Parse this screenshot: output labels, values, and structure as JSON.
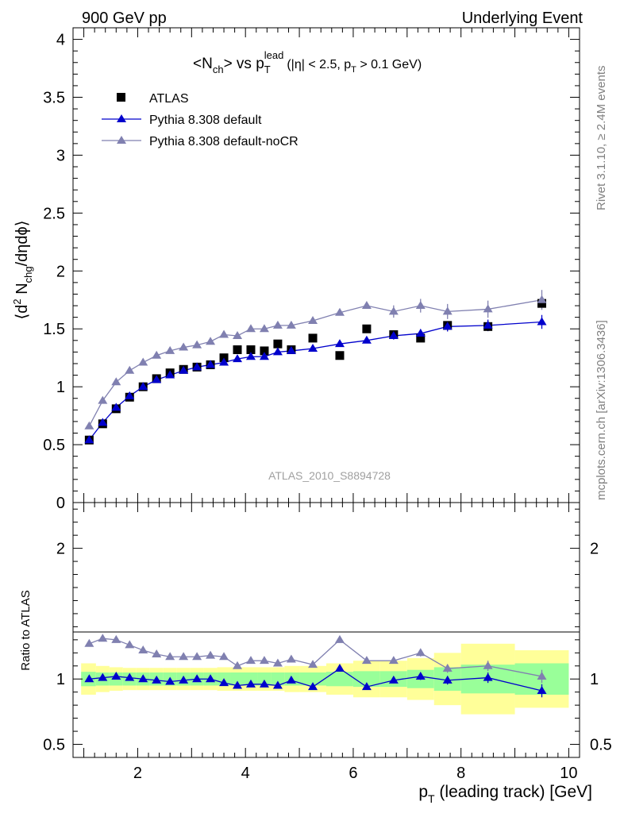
{
  "header": {
    "left": "900 GeV pp",
    "right": "Underlying Event"
  },
  "side_labels": {
    "rivet": "Rivet 3.1.10, ≥ 2.4M events",
    "mcplots": "mcplots.cern.ch [arXiv:1306.3436]"
  },
  "watermark": "ATLAS_2010_S8894728",
  "colors": {
    "atlas": "#000000",
    "pythia_default": "#0000cc",
    "pythia_nocr": "#8080b0",
    "band_inner": "#99ff99",
    "band_outer": "#ffff99"
  },
  "chart_data": [
    {
      "type": "scatter",
      "title": {
        "main": "<N",
        "main_sub": "ch",
        "mid": "> vs p",
        "mid_sub": "T",
        "mid_sup": "lead",
        "cond_a": "(|η| < 2.5, p",
        "cond_sub": "T",
        "cond_b": " > 0.1 GeV)"
      },
      "ylabel": {
        "a": "⟨d",
        "sup": "2",
        "b": " N",
        "sub": "chg",
        "c": "/dηdϕ⟩"
      },
      "xlim": [
        0.8,
        10.2
      ],
      "ylim": [
        0,
        4.1
      ],
      "yticks": [
        "0",
        "0.5",
        "1",
        "1.5",
        "2",
        "2.5",
        "3",
        "3.5",
        "4"
      ],
      "legend_position": "top-left",
      "series": [
        {
          "name": "ATLAS",
          "x": [
            1.1,
            1.35,
            1.6,
            1.85,
            2.1,
            2.35,
            2.6,
            2.85,
            3.1,
            3.35,
            3.6,
            3.85,
            4.1,
            4.35,
            4.6,
            4.85,
            5.25,
            5.75,
            6.25,
            6.75,
            7.25,
            7.75,
            8.5,
            9.5
          ],
          "y": [
            0.54,
            0.68,
            0.81,
            0.91,
            1.0,
            1.07,
            1.12,
            1.15,
            1.17,
            1.19,
            1.25,
            1.32,
            1.32,
            1.31,
            1.37,
            1.32,
            1.42,
            1.27,
            1.5,
            1.45,
            1.42,
            1.53,
            1.52,
            1.72
          ]
        },
        {
          "name": "Pythia 8.308 default",
          "x": [
            1.1,
            1.35,
            1.6,
            1.85,
            2.1,
            2.35,
            2.6,
            2.85,
            3.1,
            3.35,
            3.6,
            3.85,
            4.1,
            4.35,
            4.6,
            4.85,
            5.25,
            5.75,
            6.25,
            6.75,
            7.25,
            7.75,
            8.5,
            9.5
          ],
          "y": [
            0.54,
            0.69,
            0.82,
            0.92,
            1.0,
            1.06,
            1.1,
            1.14,
            1.17,
            1.19,
            1.21,
            1.24,
            1.26,
            1.26,
            1.3,
            1.31,
            1.33,
            1.37,
            1.4,
            1.44,
            1.46,
            1.52,
            1.53,
            1.56
          ]
        },
        {
          "name": "Pythia 8.308 default-noCR",
          "x": [
            1.1,
            1.35,
            1.6,
            1.85,
            2.1,
            2.35,
            2.6,
            2.85,
            3.1,
            3.35,
            3.6,
            3.85,
            4.1,
            4.35,
            4.6,
            4.85,
            5.25,
            5.75,
            6.25,
            6.75,
            7.25,
            7.75,
            8.5,
            9.5
          ],
          "y": [
            0.66,
            0.88,
            1.04,
            1.14,
            1.21,
            1.27,
            1.31,
            1.34,
            1.36,
            1.39,
            1.45,
            1.44,
            1.5,
            1.5,
            1.53,
            1.53,
            1.57,
            1.64,
            1.7,
            1.65,
            1.7,
            1.65,
            1.67,
            1.75
          ]
        }
      ]
    },
    {
      "type": "line",
      "ylabel": "Ratio to ATLAS",
      "xlabel": {
        "a": "p",
        "sub": "T",
        "b": " (leading track) [GeV]"
      },
      "xlim": [
        0.8,
        10.2
      ],
      "xticks": [
        "2",
        "4",
        "6",
        "8",
        "10"
      ],
      "ylim": [
        0.4,
        2.35
      ],
      "yticks": [
        "0.5",
        "1",
        "2"
      ],
      "bins": [
        0.95,
        1.225,
        1.475,
        1.725,
        1.975,
        2.225,
        2.475,
        2.725,
        2.975,
        3.225,
        3.475,
        3.725,
        3.975,
        4.225,
        4.475,
        4.725,
        5.0,
        5.5,
        6.0,
        6.5,
        7.0,
        7.5,
        8.0,
        9.0,
        10.0
      ],
      "band_inner": [
        0.055,
        0.05,
        0.05,
        0.05,
        0.05,
        0.05,
        0.05,
        0.05,
        0.05,
        0.05,
        0.05,
        0.05,
        0.05,
        0.05,
        0.05,
        0.05,
        0.05,
        0.055,
        0.06,
        0.06,
        0.07,
        0.09,
        0.11,
        0.12
      ],
      "band_outer": [
        0.12,
        0.1,
        0.09,
        0.085,
        0.085,
        0.085,
        0.085,
        0.085,
        0.085,
        0.085,
        0.09,
        0.09,
        0.09,
        0.09,
        0.09,
        0.1,
        0.1,
        0.12,
        0.14,
        0.14,
        0.16,
        0.2,
        0.27,
        0.22
      ],
      "series": [
        {
          "name": "Pythia 8.308 default",
          "x": [
            1.1,
            1.35,
            1.6,
            1.85,
            2.1,
            2.35,
            2.6,
            2.85,
            3.1,
            3.35,
            3.6,
            3.85,
            4.1,
            4.35,
            4.6,
            4.85,
            5.25,
            5.75,
            6.25,
            6.75,
            7.25,
            7.75,
            8.5,
            9.5
          ],
          "y": [
            1.0,
            1.01,
            1.02,
            1.01,
            1.0,
            0.99,
            0.98,
            0.99,
            1.0,
            1.0,
            0.97,
            0.95,
            0.96,
            0.96,
            0.95,
            0.99,
            0.94,
            1.08,
            0.94,
            0.99,
            1.02,
            0.99,
            1.01,
            0.91
          ]
        },
        {
          "name": "Pythia 8.308 default-noCR",
          "x": [
            1.1,
            1.35,
            1.6,
            1.85,
            2.1,
            2.35,
            2.6,
            2.85,
            3.1,
            3.35,
            3.6,
            3.85,
            4.1,
            4.35,
            4.6,
            4.85,
            5.25,
            5.75,
            6.25,
            6.75,
            7.25,
            7.75,
            8.5,
            9.5
          ],
          "y": [
            1.27,
            1.31,
            1.3,
            1.26,
            1.22,
            1.19,
            1.17,
            1.17,
            1.17,
            1.18,
            1.17,
            1.1,
            1.14,
            1.14,
            1.12,
            1.15,
            1.11,
            1.3,
            1.14,
            1.14,
            1.2,
            1.08,
            1.1,
            1.02
          ]
        }
      ]
    }
  ]
}
